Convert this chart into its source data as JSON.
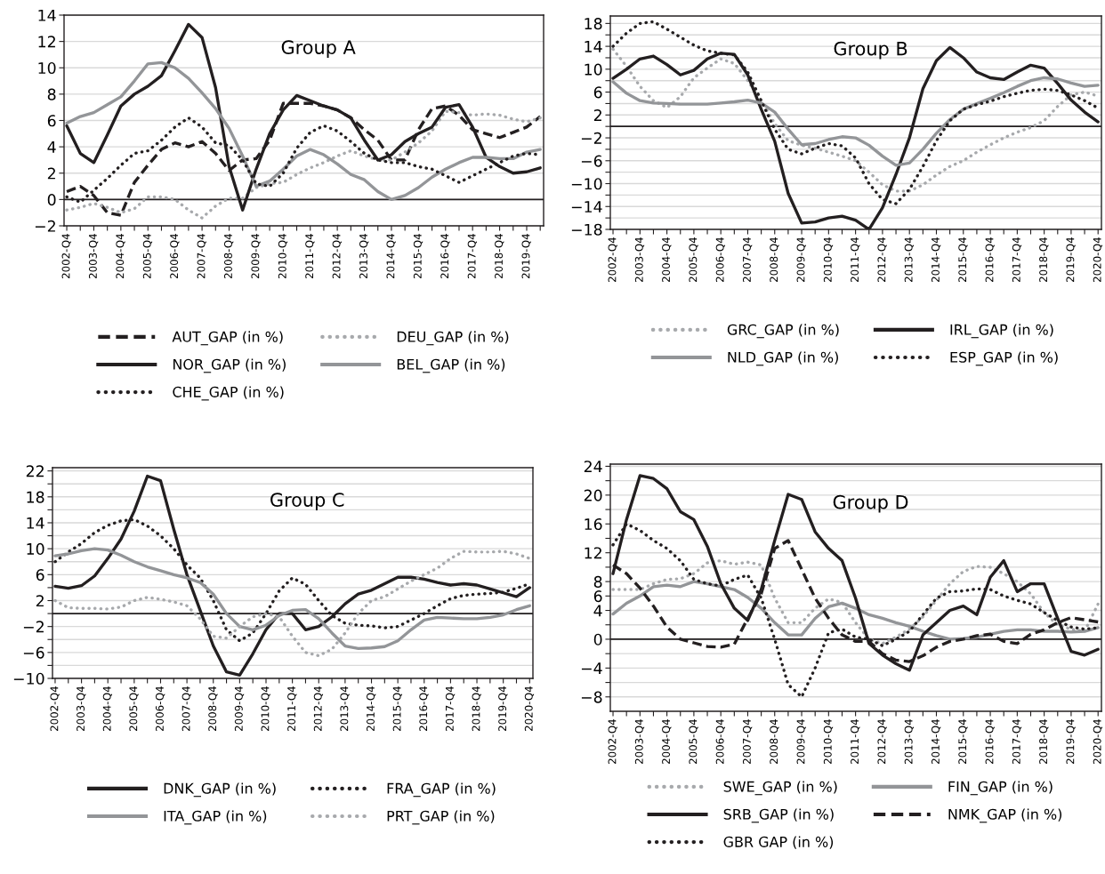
{
  "chart_data": [
    {
      "type": "line",
      "title": "Group A",
      "grid": "y",
      "legend": "bottom",
      "categories": [
        "2002-Q4",
        null,
        "2003-Q4",
        null,
        "2004-Q4",
        null,
        "2005-Q4",
        null,
        "2006-Q4",
        null,
        "2007-Q4",
        null,
        "2008-Q4",
        null,
        "2009-Q4",
        null,
        "2010-Q4",
        null,
        "2011-Q4",
        null,
        "2012-Q4",
        null,
        "2013-Q4",
        null,
        "2014-Q4",
        null,
        "2015-Q4",
        null,
        "2016-Q4",
        null,
        "2017-Q4",
        null,
        "2018-Q4",
        null,
        "2019-Q4",
        null
      ],
      "ylim": [
        -2,
        14
      ],
      "yticks": [
        {
          "value": -2,
          "label": "−2"
        },
        0,
        2,
        4,
        6,
        8,
        10,
        12,
        14
      ],
      "ref_lines": [
        {
          "axis": "y",
          "value": 0,
          "color": "#231f20"
        }
      ],
      "series": [
        {
          "name": "AUT_GAP (in %)",
          "color": "#231f20",
          "line_style": "dashed",
          "values": [
            0.6,
            1.0,
            0.3,
            -1.0,
            -1.2,
            1.3,
            2.6,
            3.8,
            4.3,
            4.0,
            4.4,
            3.5,
            2.2,
            3.0,
            3.1,
            4.5,
            7.3,
            7.3,
            7.3,
            7.1,
            6.8,
            6.2,
            5.3,
            4.5,
            3.0,
            3.0,
            5.3,
            6.9,
            7.1,
            6.4,
            5.3,
            5.0,
            4.7,
            5.1,
            5.5,
            6.3
          ]
        },
        {
          "name": "DEU_GAP (in %)",
          "color": "#a7a9ac",
          "line_style": "dotted",
          "values": [
            -0.8,
            -0.6,
            -0.3,
            -0.6,
            -1.0,
            -0.7,
            0.2,
            0.2,
            0.0,
            -0.8,
            -1.4,
            -0.5,
            0.1,
            0.1,
            0.9,
            1.2,
            1.3,
            1.9,
            2.4,
            2.8,
            3.3,
            3.7,
            3.3,
            3.0,
            3.0,
            3.6,
            4.3,
            5.2,
            6.7,
            6.6,
            6.4,
            6.5,
            6.4,
            6.1,
            5.9,
            6.2
          ]
        },
        {
          "name": "NOR_GAP (in %)",
          "color": "#231f20",
          "line_style": "solid",
          "values": [
            5.6,
            3.5,
            2.8,
            4.9,
            7.1,
            8.0,
            8.6,
            9.4,
            11.3,
            13.3,
            12.3,
            8.5,
            2.5,
            -0.8,
            2.3,
            5.0,
            6.8,
            7.9,
            7.5,
            7.1,
            6.8,
            6.2,
            4.5,
            3.0,
            3.4,
            4.4,
            5.0,
            5.5,
            7.0,
            7.2,
            5.5,
            3.2,
            2.5,
            2.0,
            2.1,
            2.4
          ]
        },
        {
          "name": "BEL_GAP (in %)",
          "color": "#939598",
          "line_style": "solid",
          "values": [
            5.8,
            6.3,
            6.6,
            7.2,
            7.8,
            9.0,
            10.3,
            10.4,
            10.0,
            9.2,
            8.1,
            6.9,
            5.4,
            3.3,
            1.0,
            1.4,
            2.3,
            3.3,
            3.8,
            3.4,
            2.7,
            1.9,
            1.5,
            0.6,
            0.0,
            0.3,
            0.9,
            1.7,
            2.3,
            2.8,
            3.2,
            3.2,
            3.1,
            3.1,
            3.6,
            3.8
          ]
        },
        {
          "name": "CHE_GAP (in %)",
          "color": "#231f20",
          "line_style": "dotted",
          "values": [
            0.2,
            -0.2,
            0.7,
            1.6,
            2.6,
            3.5,
            3.7,
            4.5,
            5.5,
            6.2,
            5.5,
            4.3,
            4.1,
            3.0,
            1.2,
            1.0,
            2.0,
            3.9,
            5.1,
            5.6,
            5.2,
            4.4,
            3.5,
            3.0,
            2.8,
            2.8,
            2.5,
            2.3,
            1.8,
            1.3,
            1.8,
            2.3,
            2.8,
            3.3,
            3.5,
            3.4
          ]
        }
      ]
    },
    {
      "type": "line",
      "title": "Group B",
      "grid": "y",
      "legend": "bottom",
      "categories": [
        "2002-Q4",
        null,
        "2003-Q4",
        null,
        "2004-Q4",
        null,
        "2005-Q4",
        null,
        "2006-Q4",
        null,
        "2007-Q4",
        null,
        "2008-Q4",
        null,
        "2009-Q4",
        null,
        "2010-Q4",
        null,
        "2011-Q4",
        null,
        "2012-Q4",
        null,
        "2013-Q4",
        null,
        "2014-Q4",
        null,
        "2015-Q4",
        null,
        "2016-Q4",
        null,
        "2017-Q4",
        null,
        "2018-Q4",
        null,
        "2019-Q4",
        null,
        "2020-Q4"
      ],
      "ylim": [
        -18,
        19.3
      ],
      "yticks": [
        {
          "value": -18,
          "label": "−18"
        },
        {
          "value": -16,
          "label": null
        },
        {
          "value": -14,
          "label": "−14"
        },
        {
          "value": -12,
          "label": null
        },
        {
          "value": -10,
          "label": "−10"
        },
        {
          "value": -8,
          "label": null
        },
        {
          "value": -6,
          "label": "−6"
        },
        {
          "value": -4,
          "label": null
        },
        {
          "value": -2,
          "label": "−2"
        },
        {
          "value": 0,
          "label": null
        },
        2,
        {
          "value": 4,
          "label": null
        },
        6,
        {
          "value": 8,
          "label": null
        },
        10,
        {
          "value": 12,
          "label": null
        },
        14,
        {
          "value": 16,
          "label": null
        },
        18
      ],
      "ref_lines": [
        {
          "axis": "y",
          "value": 0,
          "color": "#231f20"
        }
      ],
      "series": [
        {
          "name": "GRC_GAP (in %)",
          "color": "#a7a9ac",
          "line_style": "dotted",
          "values": [
            13.5,
            10.5,
            7.0,
            4.5,
            3.3,
            5.2,
            8.5,
            10.2,
            11.8,
            11.0,
            8.0,
            4.5,
            0.5,
            -2.5,
            -3.3,
            -3.8,
            -4.5,
            -5.2,
            -6.0,
            -8.0,
            -10.2,
            -11.3,
            -11.3,
            -10.2,
            -8.5,
            -7.0,
            -6.0,
            -4.5,
            -3.2,
            -2.0,
            -1.0,
            -0.2,
            1.0,
            3.5,
            5.5,
            6.0,
            5.3
          ]
        },
        {
          "name": "IRL_GAP (in %)",
          "color": "#231f20",
          "line_style": "solid",
          "values": [
            8.4,
            10.0,
            11.8,
            12.3,
            10.8,
            9.0,
            9.8,
            11.8,
            12.8,
            12.6,
            9.0,
            3.0,
            -2.6,
            -11.7,
            -16.9,
            -16.7,
            -16.0,
            -15.7,
            -16.4,
            -18.0,
            -14.2,
            -8.4,
            -2.0,
            6.6,
            11.5,
            13.8,
            12.0,
            9.5,
            8.5,
            8.2,
            9.5,
            10.7,
            10.2,
            7.5,
            4.6,
            2.5,
            0.8
          ]
        },
        {
          "name": "NLD_GAP (in %)",
          "color": "#939598",
          "line_style": "solid",
          "values": [
            7.8,
            5.8,
            4.5,
            4.1,
            4.0,
            3.9,
            3.9,
            3.9,
            4.1,
            4.3,
            4.6,
            4.1,
            2.5,
            -0.5,
            -3.2,
            -3.0,
            -2.3,
            -1.8,
            -2.0,
            -3.3,
            -5.2,
            -6.8,
            -6.4,
            -4.0,
            -1.2,
            1.2,
            3.0,
            4.0,
            4.9,
            5.9,
            7.0,
            8.0,
            8.5,
            8.3,
            7.6,
            7.0,
            7.2
          ]
        },
        {
          "name": "ESP_GAP (in %)",
          "color": "#231f20",
          "line_style": "dotted",
          "values": [
            14.0,
            16.3,
            18.0,
            18.3,
            17.0,
            15.6,
            14.2,
            13.2,
            12.8,
            12.5,
            9.5,
            4.5,
            -0.5,
            -4.0,
            -4.8,
            -3.8,
            -3.0,
            -3.4,
            -5.5,
            -10.0,
            -12.8,
            -13.5,
            -11.0,
            -7.0,
            -2.5,
            1.0,
            3.0,
            3.8,
            4.4,
            5.2,
            5.8,
            6.3,
            6.5,
            6.3,
            5.5,
            4.5,
            3.2
          ]
        }
      ]
    },
    {
      "type": "line",
      "title": "Group C",
      "grid": "y",
      "legend": "bottom",
      "categories": [
        "2002-Q4",
        null,
        "2003-Q4",
        null,
        "2004-Q4",
        null,
        "2005-Q4",
        null,
        "2006-Q4",
        null,
        "2007-Q4",
        null,
        "2008-Q4",
        null,
        "2009-Q4",
        null,
        "2010-Q4",
        null,
        "2011-Q4",
        null,
        "2012-Q4",
        null,
        "2013-Q4",
        null,
        "2014-Q4",
        null,
        "2015-Q4",
        null,
        "2016-Q4",
        null,
        "2017-Q4",
        null,
        "2018-Q4",
        null,
        "2019-Q4",
        null,
        "2020-Q4"
      ],
      "ylim": [
        -10,
        22.5
      ],
      "yticks": [
        {
          "value": -10,
          "label": "−10"
        },
        {
          "value": -8,
          "label": null
        },
        {
          "value": -6,
          "label": "−6"
        },
        {
          "value": -4,
          "label": null
        },
        {
          "value": -2,
          "label": "−2"
        },
        {
          "value": 0,
          "label": null
        },
        2,
        {
          "value": 4,
          "label": null
        },
        6,
        {
          "value": 8,
          "label": null
        },
        10,
        {
          "value": 12,
          "label": null
        },
        14,
        {
          "value": 16,
          "label": null
        },
        18,
        {
          "value": 20,
          "label": null
        },
        22
      ],
      "ref_lines": [
        {
          "axis": "y",
          "value": 0,
          "color": "#231f20"
        }
      ],
      "series": [
        {
          "name": "DNK_GAP (in %)",
          "color": "#231f20",
          "line_style": "solid",
          "values": [
            4.2,
            3.9,
            4.3,
            5.8,
            8.5,
            11.5,
            15.8,
            21.2,
            20.5,
            13.0,
            6.0,
            0.5,
            -5.0,
            -9.0,
            -9.5,
            -6.2,
            -2.5,
            0.0,
            0.0,
            -2.5,
            -2.0,
            -0.5,
            1.5,
            3.0,
            3.6,
            4.6,
            5.6,
            5.6,
            5.3,
            4.8,
            4.4,
            4.6,
            4.4,
            3.8,
            3.2,
            2.6,
            4.0
          ]
        },
        {
          "name": "FRA_GAP (in %)",
          "color": "#231f20",
          "line_style": "dotted",
          "values": [
            8.0,
            9.5,
            10.8,
            12.5,
            13.6,
            14.3,
            14.5,
            13.5,
            12.0,
            10.0,
            7.5,
            5.5,
            2.0,
            -2.5,
            -4.2,
            -3.0,
            0.0,
            3.5,
            5.5,
            4.5,
            2.0,
            -0.3,
            -1.5,
            -1.8,
            -1.9,
            -2.2,
            -2.0,
            -1.0,
            0.0,
            1.2,
            2.3,
            2.8,
            3.0,
            3.1,
            3.3,
            3.9,
            4.6
          ]
        },
        {
          "name": "ITA_GAP (in %)",
          "color": "#939598",
          "line_style": "solid",
          "values": [
            8.9,
            9.2,
            9.7,
            10.0,
            9.8,
            9.0,
            8.0,
            7.2,
            6.6,
            6.0,
            5.5,
            4.8,
            3.0,
            0.0,
            -2.0,
            -2.5,
            -1.8,
            -0.3,
            0.5,
            0.6,
            -0.8,
            -3.0,
            -5.0,
            -5.4,
            -5.3,
            -5.1,
            -4.2,
            -2.5,
            -1.0,
            -0.6,
            -0.7,
            -0.8,
            -0.8,
            -0.6,
            -0.2,
            0.6,
            1.2
          ]
        },
        {
          "name": "PRT_GAP (in %)",
          "color": "#a7a9ac",
          "line_style": "dotted",
          "values": [
            2.0,
            0.9,
            0.8,
            0.8,
            0.7,
            1.0,
            2.0,
            2.5,
            2.2,
            1.8,
            1.2,
            -0.8,
            -3.5,
            -3.8,
            -2.0,
            -0.5,
            0.0,
            -0.5,
            -3.5,
            -6.0,
            -6.5,
            -5.5,
            -3.0,
            0.0,
            2.0,
            2.6,
            3.8,
            5.0,
            6.0,
            7.0,
            8.5,
            9.6,
            9.5,
            9.5,
            9.6,
            9.2,
            8.5
          ]
        }
      ]
    },
    {
      "type": "line",
      "title": "Group D",
      "grid": "y",
      "legend": "bottom",
      "categories": [
        "2002-Q4",
        null,
        "2003-Q4",
        null,
        "2004-Q4",
        null,
        "2005-Q4",
        null,
        "2006-Q4",
        null,
        "2007-Q4",
        null,
        "2008-Q4",
        null,
        "2009-Q4",
        null,
        "2010-Q4",
        null,
        "2011-Q4",
        null,
        "2012-Q4",
        null,
        "2013-Q4",
        null,
        "2014-Q4",
        null,
        "2015-Q4",
        null,
        "2016-Q4",
        null,
        "2017-Q4",
        null,
        "2018-Q4",
        null,
        "2019-Q4",
        null,
        "2020-Q4"
      ],
      "ylim": [
        -10,
        24.3
      ],
      "yticks": [
        {
          "value": -8,
          "label": "−8"
        },
        {
          "value": -6,
          "label": null
        },
        {
          "value": -4,
          "label": "−4"
        },
        {
          "value": -2,
          "label": null
        },
        0,
        {
          "value": 2,
          "label": null
        },
        4,
        6,
        8,
        {
          "value": 10,
          "label": null
        },
        12,
        {
          "value": 14,
          "label": null
        },
        16,
        {
          "value": 18,
          "label": null
        },
        20,
        {
          "value": 22,
          "label": null
        },
        24
      ],
      "ref_lines": [
        {
          "axis": "y",
          "value": 0,
          "color": "#231f20"
        }
      ],
      "series": [
        {
          "name": "SWE_GAP (in %)",
          "color": "#a7a9ac",
          "line_style": "dotted",
          "values": [
            6.9,
            6.9,
            6.9,
            7.7,
            8.3,
            8.4,
            9.1,
            10.6,
            10.9,
            10.4,
            10.7,
            10.3,
            5.7,
            2.3,
            2.3,
            4.3,
            5.6,
            5.1,
            2.3,
            0.0,
            -0.6,
            0.3,
            1.4,
            3.1,
            5.4,
            7.7,
            9.4,
            10.1,
            10.0,
            9.1,
            8.0,
            6.3,
            3.7,
            2.0,
            1.4,
            1.1,
            4.9
          ]
        },
        {
          "name": "FIN_GAP (in %)",
          "color": "#939598",
          "line_style": "solid",
          "values": [
            3.5,
            5.0,
            6.0,
            7.3,
            7.5,
            7.3,
            8.0,
            7.7,
            7.3,
            6.9,
            5.8,
            4.3,
            2.3,
            0.6,
            0.6,
            2.9,
            4.5,
            5.0,
            4.3,
            3.4,
            2.9,
            2.3,
            1.8,
            1.1,
            0.5,
            0.0,
            0.1,
            0.3,
            0.7,
            1.1,
            1.3,
            1.3,
            1.1,
            1.1,
            1.0,
            1.1,
            1.6
          ]
        },
        {
          "name": "SRB_GAP (in %)",
          "color": "#231f20",
          "line_style": "solid",
          "values": [
            9.1,
            16.6,
            22.7,
            22.3,
            20.9,
            17.7,
            16.6,
            12.9,
            7.7,
            4.3,
            2.6,
            6.9,
            13.7,
            20.1,
            19.4,
            14.9,
            12.6,
            10.9,
            5.7,
            -0.6,
            -2.2,
            -3.4,
            -4.3,
            0.6,
            2.3,
            4.0,
            4.6,
            3.4,
            8.6,
            10.9,
            6.6,
            7.7,
            7.7,
            2.9,
            -1.7,
            -2.2,
            -1.4
          ]
        },
        {
          "name": "NMK_GAP (in %)",
          "color": "#231f20",
          "line_style": "dashed",
          "values": [
            10.3,
            9.1,
            7.1,
            4.6,
            1.7,
            0.0,
            -0.5,
            -1.0,
            -1.1,
            -0.7,
            2.9,
            6.3,
            12.6,
            13.7,
            9.7,
            5.7,
            2.9,
            0.6,
            -0.3,
            -0.3,
            -2.0,
            -2.9,
            -3.1,
            -2.3,
            -1.1,
            -0.3,
            0.0,
            0.5,
            0.7,
            -0.3,
            -0.6,
            0.7,
            1.3,
            2.3,
            3.0,
            2.7,
            2.4
          ]
        },
        {
          "name": "GBR GAP (in %)",
          "color": "#231f20",
          "line_style": "dotted",
          "values": [
            13.1,
            16.0,
            15.1,
            13.7,
            12.6,
            10.9,
            8.3,
            7.7,
            7.4,
            8.3,
            8.9,
            5.7,
            0.0,
            -6.3,
            -8.0,
            -4.0,
            0.9,
            1.4,
            0.3,
            0.0,
            -0.9,
            0.0,
            1.1,
            3.4,
            5.7,
            6.6,
            6.7,
            7.0,
            6.9,
            6.0,
            5.4,
            4.9,
            3.7,
            2.6,
            1.7,
            1.4,
            1.6
          ]
        }
      ]
    }
  ]
}
